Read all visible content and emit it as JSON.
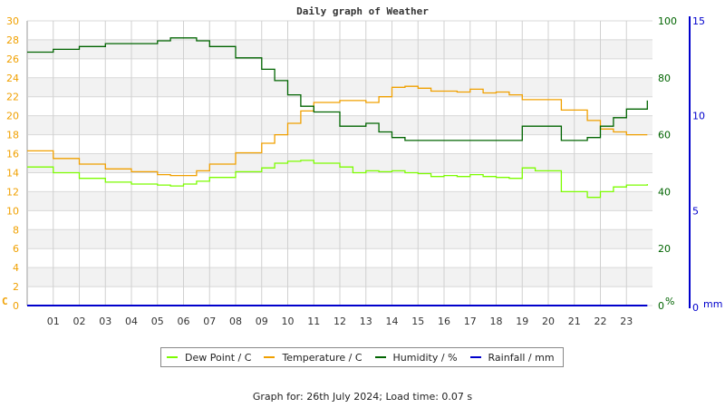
{
  "chart_data": {
    "type": "line",
    "title": "Daily graph of Weather",
    "xlabel": "",
    "x_ticks": [
      "01",
      "02",
      "03",
      "04",
      "05",
      "06",
      "07",
      "08",
      "09",
      "10",
      "11",
      "12",
      "13",
      "14",
      "15",
      "16",
      "17",
      "18",
      "19",
      "20",
      "21",
      "22",
      "23"
    ],
    "axes": {
      "left": {
        "label": "C",
        "ticks": [
          0,
          2,
          4,
          6,
          8,
          10,
          12,
          14,
          16,
          18,
          20,
          22,
          24,
          26,
          28,
          30
        ],
        "range": [
          0,
          30
        ],
        "color": "#f0a000"
      },
      "right1": {
        "label": "%",
        "ticks": [
          0,
          20,
          40,
          60,
          80,
          100
        ],
        "range": [
          0,
          100
        ],
        "color": "#006400"
      },
      "right2": {
        "label": "mm",
        "ticks": [
          0,
          5,
          10,
          15
        ],
        "range": [
          0,
          15
        ],
        "color": "#0000cc"
      }
    },
    "grid": true,
    "legend_position": "bottom",
    "x": [
      0,
      1,
      2,
      3,
      4,
      5,
      5.5,
      6,
      6.5,
      7,
      8,
      9,
      9.5,
      10,
      10.5,
      11,
      12,
      12.5,
      13,
      13.5,
      14,
      14.5,
      15,
      15.5,
      16,
      16.5,
      17,
      17.5,
      18,
      18.5,
      19,
      19.5,
      20,
      20.5,
      21,
      21.5,
      22,
      22.5,
      23,
      23.8
    ],
    "series": [
      {
        "name": "Dew Point / C",
        "axis": "left",
        "color": "#7cfc00",
        "values": [
          14.6,
          14.0,
          13.4,
          13.0,
          12.8,
          12.7,
          12.6,
          12.8,
          13.1,
          13.5,
          14.1,
          14.5,
          15.0,
          15.2,
          15.3,
          15.0,
          14.6,
          14.0,
          14.2,
          14.1,
          14.2,
          14.0,
          13.9,
          13.6,
          13.7,
          13.6,
          13.8,
          13.6,
          13.5,
          13.4,
          14.5,
          14.2,
          14.2,
          12.0,
          12.0,
          11.4,
          12.0,
          12.5,
          12.7,
          12.8
        ]
      },
      {
        "name": "Temperature / C",
        "axis": "left",
        "color": "#f0a000",
        "values": [
          16.3,
          15.5,
          14.9,
          14.4,
          14.1,
          13.8,
          13.7,
          13.7,
          14.2,
          14.9,
          16.1,
          17.1,
          18.0,
          19.2,
          20.5,
          21.4,
          21.6,
          21.6,
          21.4,
          22.0,
          23.0,
          23.1,
          22.9,
          22.6,
          22.6,
          22.5,
          22.8,
          22.4,
          22.5,
          22.2,
          21.7,
          21.7,
          21.7,
          20.6,
          20.6,
          19.5,
          18.6,
          18.3,
          18.0,
          18.0
        ]
      },
      {
        "name": "Humidity / %",
        "axis": "right1",
        "color": "#006400",
        "values": [
          89,
          90,
          91,
          92,
          92,
          93,
          94,
          94,
          93,
          91,
          87,
          83,
          79,
          74,
          70,
          68,
          63,
          63,
          64,
          61,
          59,
          58,
          58,
          58,
          58,
          58,
          58,
          58,
          58,
          58,
          63,
          63,
          63,
          58,
          58,
          59,
          63,
          66,
          69,
          72
        ]
      },
      {
        "name": "Rainfall / mm",
        "axis": "right2",
        "color": "#0000cc",
        "values": [
          0,
          0,
          0,
          0,
          0,
          0,
          0,
          0,
          0,
          0,
          0,
          0,
          0,
          0,
          0,
          0,
          0,
          0,
          0,
          0,
          0,
          0,
          0,
          0,
          0,
          0,
          0,
          0,
          0,
          0,
          0,
          0,
          0,
          0,
          0,
          0,
          0,
          0,
          0,
          0
        ]
      }
    ]
  },
  "legend": {
    "items": [
      {
        "label": "Dew Point / C",
        "color": "#7cfc00"
      },
      {
        "label": "Temperature / C",
        "color": "#f0a000"
      },
      {
        "label": "Humidity / %",
        "color": "#006400"
      },
      {
        "label": "Rainfall / mm",
        "color": "#0000cc"
      }
    ]
  },
  "footer": {
    "text": "Graph for: 26th July 2024; Load time: 0.07 s"
  }
}
